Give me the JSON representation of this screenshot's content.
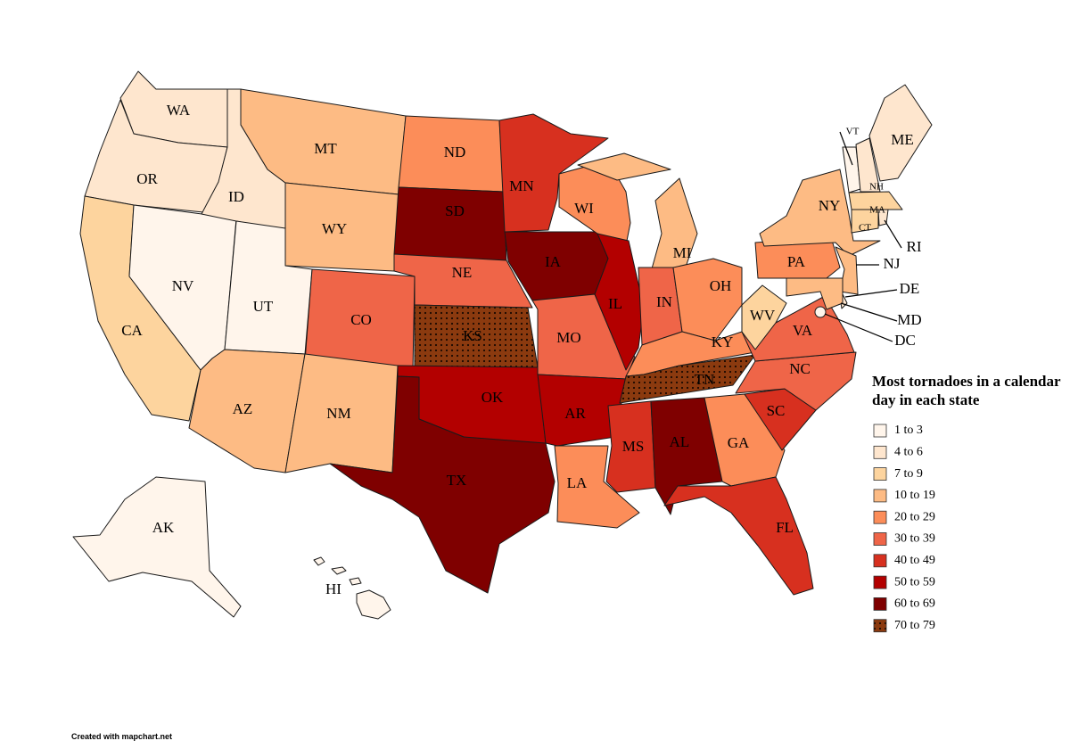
{
  "map": {
    "legend": {
      "title": [
        "Most tornadoes in a calendar",
        "day in each state"
      ],
      "items": [
        {
          "label": "1 to 3",
          "color": "#fff5eb"
        },
        {
          "label": "4 to 6",
          "color": "#fee6ce"
        },
        {
          "label": "7 to 9",
          "color": "#fdd49e"
        },
        {
          "label": "10 to 19",
          "color": "#fdbb84"
        },
        {
          "label": "20 to 29",
          "color": "#fc8d59"
        },
        {
          "label": "30 to 39",
          "color": "#ef6548"
        },
        {
          "label": "40 to 49",
          "color": "#d7301f"
        },
        {
          "label": "50 to 59",
          "color": "#b30000"
        },
        {
          "label": "60 to 69",
          "color": "#7f0000"
        },
        {
          "label": "70 to 79",
          "color": "#8b3a0f",
          "pattern": "dots"
        }
      ]
    },
    "states": [
      {
        "label": "WA",
        "bin": 1
      },
      {
        "label": "OR",
        "bin": 1
      },
      {
        "label": "CA",
        "bin": 2
      },
      {
        "label": "NV",
        "bin": 0
      },
      {
        "label": "ID",
        "bin": 1
      },
      {
        "label": "MT",
        "bin": 3
      },
      {
        "label": "WY",
        "bin": 3
      },
      {
        "label": "UT",
        "bin": 0
      },
      {
        "label": "CO",
        "bin": 5
      },
      {
        "label": "AZ",
        "bin": 3
      },
      {
        "label": "NM",
        "bin": 3
      },
      {
        "label": "ND",
        "bin": 4
      },
      {
        "label": "SD",
        "bin": 8
      },
      {
        "label": "NE",
        "bin": 5
      },
      {
        "label": "KS",
        "bin": 9
      },
      {
        "label": "OK",
        "bin": 7
      },
      {
        "label": "TX",
        "bin": 8
      },
      {
        "label": "MN",
        "bin": 6
      },
      {
        "label": "IA",
        "bin": 8
      },
      {
        "label": "MO",
        "bin": 5
      },
      {
        "label": "AR",
        "bin": 7
      },
      {
        "label": "LA",
        "bin": 4
      },
      {
        "label": "WI",
        "bin": 4
      },
      {
        "label": "IL",
        "bin": 7
      },
      {
        "label": "MI",
        "bin": 3
      },
      {
        "label": "IN",
        "bin": 5
      },
      {
        "label": "OH",
        "bin": 4
      },
      {
        "label": "KY",
        "bin": 4
      },
      {
        "label": "TN",
        "bin": 9
      },
      {
        "label": "MS",
        "bin": 6
      },
      {
        "label": "AL",
        "bin": 8
      },
      {
        "label": "GA",
        "bin": 4
      },
      {
        "label": "FL",
        "bin": 6
      },
      {
        "label": "SC",
        "bin": 6
      },
      {
        "label": "NC",
        "bin": 5
      },
      {
        "label": "VA",
        "bin": 5
      },
      {
        "label": "WV",
        "bin": 2
      },
      {
        "label": "PA",
        "bin": 4
      },
      {
        "label": "NY",
        "bin": 3
      },
      {
        "label": "NJ",
        "bin": 3
      },
      {
        "label": "DE",
        "bin": 1
      },
      {
        "label": "MD",
        "bin": 3
      },
      {
        "label": "DC",
        "bin": 0
      },
      {
        "label": "VT",
        "bin": 0
      },
      {
        "label": "NH",
        "bin": 1
      },
      {
        "label": "ME",
        "bin": 1
      },
      {
        "label": "MA",
        "bin": 2
      },
      {
        "label": "CT",
        "bin": 2
      },
      {
        "label": "RI",
        "bin": 1
      },
      {
        "label": "AK",
        "bin": 0
      },
      {
        "label": "HI",
        "bin": 0
      }
    ],
    "credit": "Created with mapchart.net"
  }
}
